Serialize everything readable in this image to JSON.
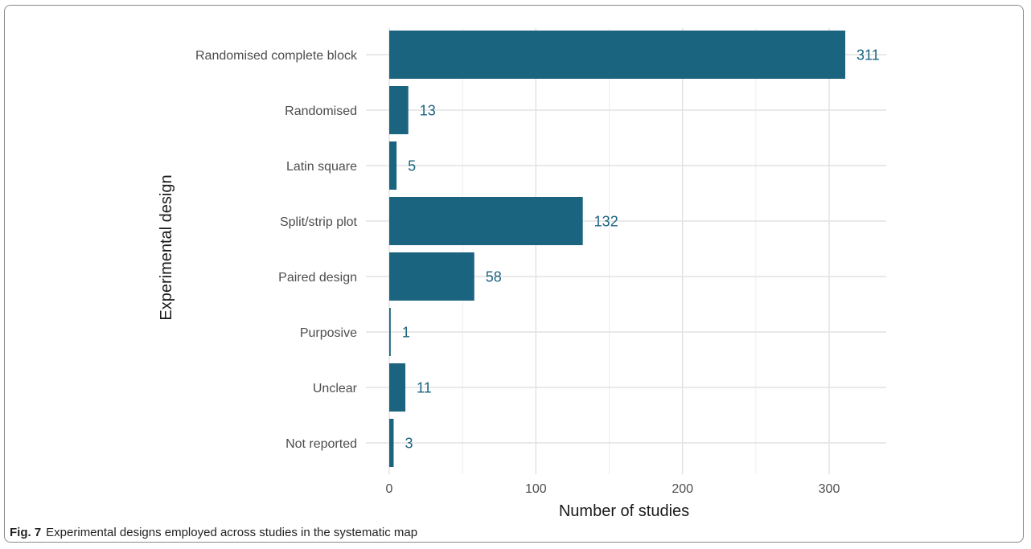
{
  "chart_data": {
    "type": "bar",
    "orientation": "horizontal",
    "categories": [
      "Randomised complete block",
      "Randomised",
      "Latin square",
      "Split/strip plot",
      "Paired design",
      "Purposive",
      "Unclear",
      "Not reported"
    ],
    "values": [
      311,
      13,
      5,
      132,
      58,
      1,
      11,
      3
    ],
    "xlabel": "Number of studies",
    "ylabel": "Experimental design",
    "xlim": [
      0,
      340
    ],
    "xticks": [
      0,
      100,
      200,
      300
    ],
    "grid": true,
    "legend": "none",
    "bar_color": "#1b6480",
    "label_color": "#1b6480"
  },
  "caption": {
    "label": "Fig. 7",
    "text": "Experimental designs employed across studies in the systematic map"
  }
}
